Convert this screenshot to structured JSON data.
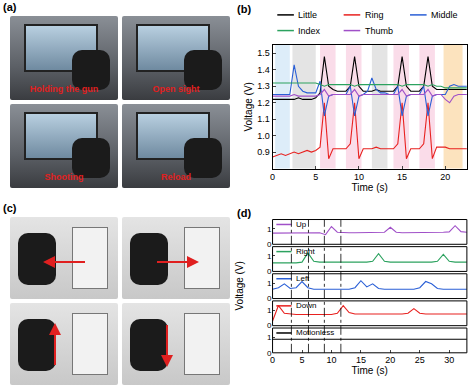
{
  "panels": {
    "a": {
      "label": "(a)",
      "type": "image",
      "captions": [
        "Holding the gun",
        "Open sight",
        "Shooting",
        "Reload"
      ]
    },
    "c": {
      "label": "(c)",
      "type": "image",
      "arrows": [
        "left",
        "right",
        "up",
        "down"
      ]
    }
  },
  "chart_data": [
    {
      "label": "(b)",
      "type": "line",
      "x_label": "Time (s)",
      "y_label": "Voltage (V)",
      "xlim": [
        0,
        22.5
      ],
      "xticks": [
        0,
        5,
        10,
        15,
        20
      ],
      "ylim": [
        0.8,
        1.55
      ],
      "yticks": [
        0.9,
        {
          "value": 1,
          "label": "1.0"
        },
        1.1,
        1.2,
        1.3,
        1.4,
        1.5
      ],
      "legend": "top",
      "regions": [
        {
          "x0": 0.3,
          "x1": 2,
          "color": "#d4e8f7"
        },
        {
          "x0": 2.3,
          "x1": 5,
          "color": "#dddddd"
        },
        {
          "x0": 5.5,
          "x1": 7.3,
          "color": "#f9d3e4"
        },
        {
          "x0": 8.5,
          "x1": 10.3,
          "color": "#f9d3e4"
        },
        {
          "x0": 11.5,
          "x1": 13.3,
          "color": "#dddddd"
        },
        {
          "x0": 14,
          "x1": 15.8,
          "color": "#f9d3e4"
        },
        {
          "x0": 17,
          "x1": 18.8,
          "color": "#f9d3e4"
        },
        {
          "x0": 19.8,
          "x1": 22,
          "color": "#fbdcae"
        }
      ],
      "x": [
        0,
        0.5,
        1,
        1.5,
        2,
        2.5,
        3,
        3.5,
        4,
        4.5,
        5,
        5.5,
        6,
        6.5,
        7,
        7.5,
        8,
        8.5,
        9,
        9.5,
        10,
        10.5,
        11,
        11.5,
        12,
        12.5,
        13,
        13.5,
        14,
        14.5,
        15,
        15.5,
        16,
        16.5,
        17,
        17.5,
        18,
        18.5,
        19,
        19.5,
        20,
        20.5,
        21,
        21.5,
        22,
        22.5
      ],
      "series": [
        {
          "name": "Little",
          "color": "#000000",
          "values": [
            1.22,
            1.22,
            1.22,
            1.22,
            1.22,
            1.22,
            1.23,
            1.22,
            1.22,
            1.22,
            1.23,
            1.26,
            1.48,
            1.3,
            1.28,
            1.27,
            1.27,
            1.27,
            1.3,
            1.48,
            1.3,
            1.27,
            1.27,
            1.27,
            1.28,
            1.27,
            1.27,
            1.27,
            1.27,
            1.3,
            1.48,
            1.3,
            1.27,
            1.27,
            1.27,
            1.3,
            1.48,
            1.3,
            1.28,
            1.28,
            1.28,
            1.28,
            1.28,
            1.28,
            1.28,
            1.28
          ]
        },
        {
          "name": "Ring",
          "color": "#e8211f",
          "values": [
            0.87,
            0.88,
            0.89,
            0.88,
            0.89,
            0.9,
            0.89,
            0.9,
            0.91,
            0.9,
            0.91,
            0.93,
            1.2,
            0.86,
            0.92,
            0.92,
            0.92,
            0.92,
            0.95,
            1.2,
            0.86,
            0.92,
            0.92,
            0.92,
            0.93,
            0.92,
            0.92,
            0.92,
            0.92,
            0.95,
            1.2,
            0.86,
            0.92,
            0.92,
            0.92,
            0.95,
            1.2,
            0.86,
            0.93,
            0.93,
            0.93,
            0.92,
            0.92,
            0.92,
            0.92,
            0.92
          ]
        },
        {
          "name": "Middle",
          "color": "#2a5fd6",
          "values": [
            1.25,
            1.25,
            1.25,
            1.25,
            1.25,
            1.43,
            1.3,
            1.27,
            1.26,
            1.26,
            1.26,
            1.33,
            1.12,
            1.24,
            1.25,
            1.25,
            1.25,
            1.25,
            1.3,
            1.12,
            1.24,
            1.25,
            1.27,
            1.35,
            1.28,
            1.26,
            1.26,
            1.25,
            1.25,
            1.3,
            1.12,
            1.24,
            1.25,
            1.25,
            1.25,
            1.3,
            1.12,
            1.24,
            1.25,
            1.25,
            1.25,
            1.3,
            1.31,
            1.3,
            1.3,
            1.3
          ]
        },
        {
          "name": "Index",
          "color": "#2ca25f",
          "values": [
            1.32,
            1.32,
            1.32,
            1.32,
            1.32,
            1.32,
            1.32,
            1.32,
            1.32,
            1.32,
            1.32,
            1.31,
            1.3,
            1.31,
            1.31,
            1.31,
            1.31,
            1.31,
            1.31,
            1.3,
            1.31,
            1.31,
            1.31,
            1.31,
            1.31,
            1.31,
            1.31,
            1.31,
            1.31,
            1.31,
            1.3,
            1.31,
            1.31,
            1.31,
            1.31,
            1.31,
            1.3,
            1.31,
            1.3,
            1.3,
            1.29,
            1.29,
            1.29,
            1.29,
            1.29,
            1.29
          ]
        },
        {
          "name": "Thumb",
          "color": "#a050c8",
          "values": [
            1.24,
            1.24,
            1.24,
            1.24,
            1.24,
            1.25,
            1.24,
            1.24,
            1.24,
            1.24,
            1.24,
            1.25,
            1.28,
            1.24,
            1.25,
            1.25,
            1.25,
            1.25,
            1.25,
            1.28,
            1.24,
            1.25,
            1.25,
            1.25,
            1.25,
            1.25,
            1.25,
            1.25,
            1.25,
            1.25,
            1.28,
            1.24,
            1.25,
            1.25,
            1.25,
            1.25,
            1.28,
            1.24,
            1.25,
            1.25,
            1.22,
            1.2,
            1.24,
            1.25,
            1.25,
            1.25
          ]
        }
      ]
    },
    {
      "label": "(d)",
      "type": "line",
      "x_label": "Time (s)",
      "y_label": "Voltage (V)",
      "xlim": [
        0,
        33
      ],
      "xticks": [
        0,
        5,
        10,
        15,
        20,
        25,
        30
      ],
      "ylim": [
        0,
        1.6
      ],
      "yticks": [
        0,
        1
      ],
      "vlines": [
        3.2,
        6.1,
        8.8,
        11.6
      ],
      "x": [
        0,
        1,
        2,
        3,
        4,
        5,
        6,
        7,
        8,
        9,
        10,
        11,
        12,
        13,
        14,
        15,
        16,
        17,
        18,
        19,
        20,
        21,
        22,
        23,
        24,
        25,
        26,
        27,
        28,
        29,
        30,
        31,
        32,
        33
      ],
      "series": [
        {
          "name": "Up",
          "color": "#a050c8",
          "values": [
            0.72,
            0.72,
            0.72,
            0.72,
            0.72,
            0.72,
            0.72,
            0.72,
            0.75,
            0.62,
            1.15,
            0.78,
            0.75,
            0.75,
            0.75,
            0.75,
            0.75,
            0.75,
            0.75,
            0.78,
            1.1,
            0.78,
            0.75,
            0.75,
            0.75,
            0.75,
            0.75,
            0.75,
            0.75,
            0.78,
            0.8,
            1.2,
            0.82,
            0.78
          ]
        },
        {
          "name": "Right",
          "color": "#2ca25f",
          "values": [
            0.55,
            0.55,
            0.55,
            0.55,
            0.55,
            0.6,
            1.2,
            0.65,
            0.6,
            0.6,
            0.6,
            0.6,
            0.6,
            0.6,
            0.6,
            0.6,
            0.6,
            0.65,
            1.15,
            0.65,
            0.6,
            0.6,
            0.6,
            0.6,
            0.6,
            0.6,
            0.6,
            0.6,
            0.65,
            1.1,
            0.65,
            0.6,
            0.6,
            0.6
          ]
        },
        {
          "name": "Left",
          "color": "#2a5fd6",
          "values": [
            0.6,
            0.7,
            0.95,
            0.65,
            0.7,
            1.1,
            0.7,
            0.6,
            0.6,
            0.6,
            0.6,
            0.6,
            0.6,
            0.6,
            0.7,
            1.15,
            0.75,
            0.95,
            0.65,
            0.6,
            0.6,
            0.6,
            0.6,
            0.6,
            0.6,
            0.7,
            1.1,
            0.95,
            0.65,
            0.6,
            0.6,
            0.6,
            0.6,
            0.6
          ]
        },
        {
          "name": "Down",
          "color": "#e8211f",
          "values": [
            0.3,
            1.3,
            0.8,
            0.75,
            0.72,
            0.72,
            0.72,
            0.72,
            0.72,
            0.72,
            0.72,
            0.8,
            1.3,
            0.85,
            0.75,
            0.75,
            0.75,
            0.75,
            0.75,
            0.75,
            0.75,
            0.75,
            0.75,
            0.8,
            1.1,
            0.8,
            0.75,
            0.75,
            0.75,
            0.75,
            0.75,
            0.75,
            0.75,
            0.75
          ]
        },
        {
          "name": "Motionless",
          "color": "#000000",
          "values": [
            0.88,
            0.88,
            0.9,
            0.88,
            0.88,
            0.89,
            0.88,
            0.88,
            0.9,
            0.88,
            0.88,
            0.89,
            0.88,
            0.88,
            0.9,
            0.88,
            0.88,
            0.89,
            0.88,
            0.88,
            0.9,
            0.88,
            0.88,
            0.89,
            0.88,
            0.88,
            0.9,
            0.88,
            0.88,
            0.89,
            0.88,
            0.88,
            0.9,
            0.88
          ]
        }
      ]
    }
  ]
}
